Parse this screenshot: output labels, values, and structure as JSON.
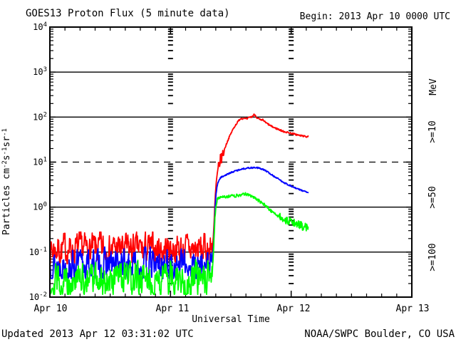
{
  "chart_data": {
    "type": "line",
    "title": "GOES13 Proton Flux (5 minute data)",
    "begin_label": "Begin: 2013 Apr 10 0000 UTC",
    "xlabel": "Universal Time",
    "ylabel_parts": [
      {
        "t": "Particles cm"
      },
      {
        "t": "-2",
        "sup": true
      },
      {
        "t": "s"
      },
      {
        "t": "-1",
        "sup": true
      },
      {
        "t": "sr"
      },
      {
        "t": "-1",
        "sup": true
      }
    ],
    "right_axis_unit": "MeV",
    "x_tick_labels": [
      "Apr 10",
      "Apr 11",
      "Apr 12",
      "Apr 13"
    ],
    "x_range_days": [
      0,
      3
    ],
    "x_minor_step_days": 0.125,
    "y_log_range": [
      -2,
      4
    ],
    "y_tick_base": "10",
    "y_tick_exponents": [
      "4",
      "3",
      "2",
      "1",
      "0",
      "-1",
      "-2"
    ],
    "solid_gridline_decades": [
      3,
      2,
      0,
      -1
    ],
    "dashed_gridline_decades": [
      1
    ],
    "day_grid_columns_days": [
      1,
      2
    ],
    "background_color": "#ffffff",
    "axis_color": "#000000",
    "sample_step_days": 0.0034722,
    "footer_left": "Updated 2013 Apr 12 03:31:02 UTC",
    "footer_right": "NOAA/SWPC Boulder, CO USA",
    "series": [
      {
        "name": ">=10",
        "unit": "MeV",
        "color": "#ff0000",
        "seed": 7,
        "baseline": {
          "t_start": 0,
          "t_end": 1.345,
          "mean": 0.115,
          "log_spread": 0.3,
          "min": 0.055,
          "max": 0.28
        },
        "event_jitter": 0.018,
        "jitter_bursts": [
          {
            "t0": 1.395,
            "t1": 1.445,
            "amp": 0.13
          }
        ],
        "event_points": [
          [
            1.345,
            0.13
          ],
          [
            1.355,
            0.22
          ],
          [
            1.362,
            0.5
          ],
          [
            1.368,
            1.2
          ],
          [
            1.374,
            2.4
          ],
          [
            1.38,
            3.8
          ],
          [
            1.387,
            5.5
          ],
          [
            1.394,
            7.2
          ],
          [
            1.4,
            8.5
          ],
          [
            1.41,
            10.5
          ],
          [
            1.42,
            12
          ],
          [
            1.43,
            14
          ],
          [
            1.44,
            17
          ],
          [
            1.455,
            22
          ],
          [
            1.47,
            28
          ],
          [
            1.485,
            35
          ],
          [
            1.5,
            43
          ],
          [
            1.515,
            52
          ],
          [
            1.53,
            61
          ],
          [
            1.545,
            70
          ],
          [
            1.56,
            80
          ],
          [
            1.575,
            90
          ],
          [
            1.59,
            95
          ],
          [
            1.6,
            92
          ],
          [
            1.61,
            96
          ],
          [
            1.62,
            93
          ],
          [
            1.632,
            90
          ],
          [
            1.645,
            95
          ],
          [
            1.658,
            100
          ],
          [
            1.67,
            100
          ],
          [
            1.685,
            108
          ],
          [
            1.695,
            115
          ],
          [
            1.705,
            108
          ],
          [
            1.715,
            97
          ],
          [
            1.725,
            93
          ],
          [
            1.735,
            90
          ],
          [
            1.745,
            86
          ],
          [
            1.755,
            84
          ],
          [
            1.765,
            88
          ],
          [
            1.775,
            82
          ],
          [
            1.785,
            77
          ],
          [
            1.8,
            72
          ],
          [
            1.815,
            68
          ],
          [
            1.83,
            64
          ],
          [
            1.845,
            61
          ],
          [
            1.86,
            58
          ],
          [
            1.875,
            56
          ],
          [
            1.89,
            54
          ],
          [
            1.905,
            52
          ],
          [
            1.92,
            50
          ],
          [
            1.935,
            48
          ],
          [
            1.95,
            47
          ],
          [
            1.965,
            46
          ],
          [
            1.98,
            45
          ],
          [
            1.995,
            44
          ],
          [
            2.01,
            43
          ],
          [
            2.025,
            42
          ],
          [
            2.04,
            41
          ],
          [
            2.055,
            40
          ],
          [
            2.07,
            39
          ],
          [
            2.085,
            38.5
          ],
          [
            2.1,
            38
          ],
          [
            2.115,
            37
          ],
          [
            2.125,
            36.5
          ],
          [
            2.135,
            37.5
          ],
          [
            2.14,
            38
          ]
        ]
      },
      {
        "name": ">=50",
        "unit": "MeV",
        "color": "#0000ff",
        "seed": 13,
        "baseline": {
          "t_start": 0,
          "t_end": 1.345,
          "mean": 0.052,
          "log_spread": 0.28,
          "min": 0.026,
          "max": 0.13
        },
        "event_jitter": 0.016,
        "jitter_bursts": [],
        "event_points": [
          [
            1.345,
            0.06
          ],
          [
            1.357,
            0.15
          ],
          [
            1.364,
            0.45
          ],
          [
            1.371,
            1.1
          ],
          [
            1.378,
            2.0
          ],
          [
            1.386,
            2.9
          ],
          [
            1.394,
            3.5
          ],
          [
            1.402,
            4.0
          ],
          [
            1.412,
            4.4
          ],
          [
            1.425,
            4.7
          ],
          [
            1.44,
            4.95
          ],
          [
            1.46,
            5.2
          ],
          [
            1.48,
            5.5
          ],
          [
            1.5,
            5.8
          ],
          [
            1.52,
            6.1
          ],
          [
            1.54,
            6.4
          ],
          [
            1.56,
            6.6
          ],
          [
            1.58,
            6.9
          ],
          [
            1.6,
            7.1
          ],
          [
            1.63,
            7.3
          ],
          [
            1.66,
            7.45
          ],
          [
            1.7,
            7.55
          ],
          [
            1.73,
            7.4
          ],
          [
            1.76,
            7.0
          ],
          [
            1.79,
            6.4
          ],
          [
            1.81,
            5.9
          ],
          [
            1.83,
            5.4
          ],
          [
            1.86,
            4.8
          ],
          [
            1.89,
            4.3
          ],
          [
            1.92,
            3.8
          ],
          [
            1.95,
            3.4
          ],
          [
            1.98,
            3.1
          ],
          [
            2.01,
            2.85
          ],
          [
            2.04,
            2.6
          ],
          [
            2.07,
            2.45
          ],
          [
            2.1,
            2.3
          ],
          [
            2.12,
            2.2
          ],
          [
            2.14,
            2.1
          ]
        ]
      },
      {
        "name": ">=100",
        "unit": "MeV",
        "color": "#00ff00",
        "seed": 29,
        "baseline": {
          "t_start": 0,
          "t_end": 1.345,
          "mean": 0.024,
          "log_spread": 0.33,
          "min": 0.0115,
          "max": 0.075
        },
        "event_jitter": 0.035,
        "jitter_bursts": [
          {
            "t0": 1.9,
            "t1": 2.14,
            "amp": 0.09
          }
        ],
        "event_points": [
          [
            1.345,
            0.028
          ],
          [
            1.352,
            0.06
          ],
          [
            1.36,
            0.18
          ],
          [
            1.368,
            0.55
          ],
          [
            1.376,
            1.0
          ],
          [
            1.384,
            1.35
          ],
          [
            1.392,
            1.55
          ],
          [
            1.402,
            1.65
          ],
          [
            1.415,
            1.72
          ],
          [
            1.43,
            1.75
          ],
          [
            1.45,
            1.72
          ],
          [
            1.47,
            1.68
          ],
          [
            1.49,
            1.73
          ],
          [
            1.51,
            1.78
          ],
          [
            1.53,
            1.75
          ],
          [
            1.55,
            1.8
          ],
          [
            1.57,
            1.85
          ],
          [
            1.6,
            1.9
          ],
          [
            1.63,
            1.95
          ],
          [
            1.65,
            1.88
          ],
          [
            1.67,
            1.78
          ],
          [
            1.69,
            1.65
          ],
          [
            1.71,
            1.52
          ],
          [
            1.73,
            1.4
          ],
          [
            1.75,
            1.28
          ],
          [
            1.77,
            1.17
          ],
          [
            1.79,
            1.07
          ],
          [
            1.81,
            0.95
          ],
          [
            1.83,
            0.84
          ],
          [
            1.85,
            0.76
          ],
          [
            1.87,
            0.7
          ],
          [
            1.89,
            0.64
          ],
          [
            1.91,
            0.6
          ],
          [
            1.93,
            0.56
          ],
          [
            1.95,
            0.53
          ],
          [
            1.97,
            0.5
          ],
          [
            1.99,
            0.48
          ],
          [
            2.01,
            0.46
          ],
          [
            2.03,
            0.44
          ],
          [
            2.05,
            0.42
          ],
          [
            2.07,
            0.4
          ],
          [
            2.09,
            0.38
          ],
          [
            2.11,
            0.36
          ],
          [
            2.125,
            0.35
          ],
          [
            2.14,
            0.36
          ]
        ]
      }
    ]
  }
}
